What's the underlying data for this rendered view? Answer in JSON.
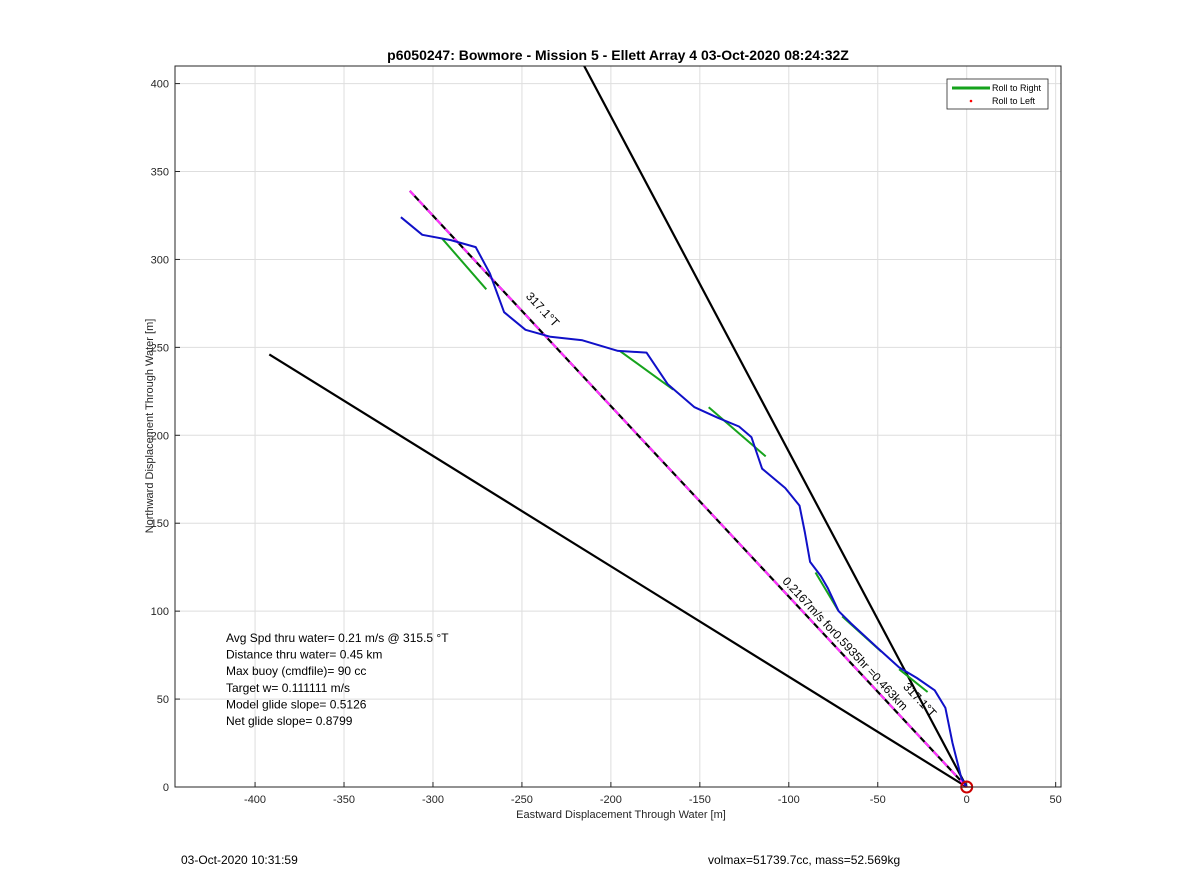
{
  "chart_data": {
    "type": "line",
    "title": "p6050247: Bowmore - Mission 5 - Ellett Array 4 03-Oct-2020 08:24:32Z",
    "xlabel": "Eastward Displacement Through Water [m]",
    "ylabel": "Northward Displacement Through Water [m]",
    "xlim": [
      -445,
      53
    ],
    "ylim": [
      0,
      410
    ],
    "xticks": [
      -400,
      -350,
      -300,
      -250,
      -200,
      -150,
      -100,
      -50,
      0,
      50
    ],
    "yticks": [
      0,
      50,
      100,
      150,
      200,
      250,
      300,
      350,
      400
    ],
    "grid": true,
    "legend_position": "top-right",
    "legend": [
      {
        "label": "Roll to Right",
        "color": "#16a31c",
        "style": "line"
      },
      {
        "label": "Roll to Left",
        "color": "#ff0000",
        "style": "dot"
      }
    ],
    "series": [
      {
        "name": "Roll to Right",
        "color": "#16a31c",
        "segments": [
          [
            [
              -295,
              312
            ],
            [
              -270,
              283
            ]
          ],
          [
            [
              -195,
              248
            ],
            [
              -165,
              226
            ]
          ],
          [
            [
              -145,
              216
            ],
            [
              -113,
              188
            ]
          ],
          [
            [
              -85,
              122
            ],
            [
              -72,
              100
            ]
          ],
          [
            [
              -70,
              97
            ],
            [
              -48,
              77
            ]
          ],
          [
            [
              -38,
              67
            ],
            [
              -22,
              54
            ]
          ]
        ]
      },
      {
        "color": "#1010c8",
        "points": [
          [
            -318,
            324
          ],
          [
            -306,
            314
          ],
          [
            -290,
            311
          ],
          [
            -276,
            307
          ],
          [
            -268,
            292
          ],
          [
            -260,
            270
          ],
          [
            -248,
            260
          ],
          [
            -234,
            256
          ],
          [
            -216,
            254
          ],
          [
            -196,
            248
          ],
          [
            -180,
            247
          ],
          [
            -168,
            229
          ],
          [
            -153,
            216
          ],
          [
            -140,
            210
          ],
          [
            -128,
            205
          ],
          [
            -121,
            199
          ],
          [
            -115,
            181
          ],
          [
            -102,
            170
          ],
          [
            -94,
            160
          ],
          [
            -91,
            145
          ],
          [
            -88,
            128
          ],
          [
            -82,
            120
          ],
          [
            -78,
            113
          ],
          [
            -72,
            100
          ],
          [
            -65,
            93
          ],
          [
            -50,
            79
          ],
          [
            -38,
            68
          ],
          [
            -28,
            62
          ],
          [
            -18,
            55
          ],
          [
            -12,
            45
          ],
          [
            -8,
            25
          ],
          [
            -3,
            5
          ],
          [
            0,
            0
          ]
        ]
      },
      {
        "color": "#000000",
        "points": [
          [
            -313,
            339
          ],
          [
            0,
            0
          ]
        ]
      },
      {
        "color": "#ff33ff",
        "points": [
          [
            -313,
            339
          ],
          [
            0,
            0
          ]
        ]
      },
      {
        "color": "#000000",
        "points": [
          [
            -215,
            410
          ],
          [
            0,
            0
          ]
        ]
      },
      {
        "color": "#000000",
        "points": [
          [
            -392,
            246
          ],
          [
            0,
            0
          ]
        ]
      }
    ],
    "marker": {
      "x": 0,
      "y": 0,
      "color": "#cc0000",
      "shape": "circle"
    },
    "annotations": {
      "heading_upper": {
        "text": "317.1°T",
        "x": -240,
        "y": 270
      },
      "heading_lower": {
        "text": "317.1°T",
        "x": -28,
        "y": 48
      },
      "speed": {
        "text": "0.2167m/s for0.5935hr =0.463km",
        "x": -70,
        "y": 80
      }
    },
    "stats": [
      "Avg Spd thru water=  0.21 m/s @ 315.5 °T",
      "Distance thru water=  0.45 km",
      "Max buoy (cmdfile)= 90 cc",
      "Target w= 0.111111 m/s",
      "Model glide slope= 0.5126",
      "Net glide slope= 0.8799"
    ]
  },
  "footer": {
    "timestamp": "03-Oct-2020 10:31:59",
    "volume_mass": "volmax=51739.7cc, mass=52.569kg"
  }
}
